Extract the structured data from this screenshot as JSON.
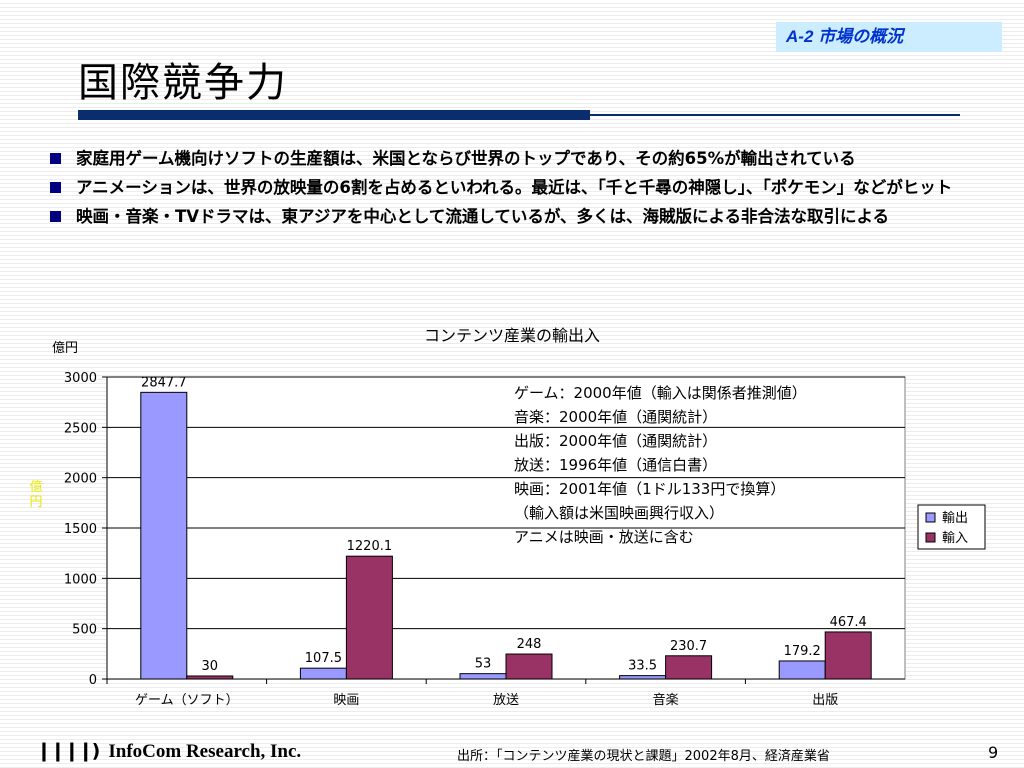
{
  "slide": {
    "section_tag": "A-2  市場の概況",
    "title": "国際競争力",
    "bullets": [
      "家庭用ゲーム機向けソフトの生産額は、米国とならび世界のトップであり、その約65%が輸出されている",
      "アニメーションは、世界の放映量の6割を占めるといわれる。最近は、「千と千尋の神隠し」、「ポケモン」などがヒット",
      "映画・音楽・TVドラマは、東アジアを中心として流通しているが、多くは、海賊版による非合法な取引による"
    ],
    "side_label": "億円",
    "footer_logo": "InfoCom Research, Inc.",
    "footer_source": "出所：「コンテンツ産業の現状と課題」2002年8月、経済産業省",
    "page_number": "9"
  },
  "chart_data": {
    "type": "bar",
    "title": "コンテンツ産業の輸出入",
    "ylabel": "億円",
    "ylim": [
      0,
      3000
    ],
    "yticks": [
      0,
      500,
      1000,
      1500,
      2000,
      2500,
      3000
    ],
    "grid": true,
    "legend_position": "right",
    "categories": [
      "ゲーム（ソフト）",
      "映画",
      "放送",
      "音楽",
      "出版"
    ],
    "series": [
      {
        "name": "輸出",
        "color": "#9999ff",
        "values": [
          2847.7,
          107.5,
          53,
          33.5,
          179.2
        ],
        "labels": [
          "2847.7",
          "107.5",
          "53",
          "33.5",
          "179.2"
        ]
      },
      {
        "name": "輸入",
        "color": "#993366",
        "values": [
          30,
          1220.1,
          248,
          230.7,
          467.4
        ],
        "labels": [
          "30",
          "1220.1",
          "248",
          "230.7",
          "467.4"
        ]
      }
    ],
    "notes": [
      "ゲーム：2000年値（輸入は関係者推測値）",
      "音楽：2000年値（通関統計）",
      "出版：2000年値（通関統計）",
      "放送：1996年値（通信白書）",
      "映画：2001年値（1ドル133円で換算）",
      "（輸入額は米国映画興行収入）",
      "アニメは映画・放送に含む"
    ]
  }
}
